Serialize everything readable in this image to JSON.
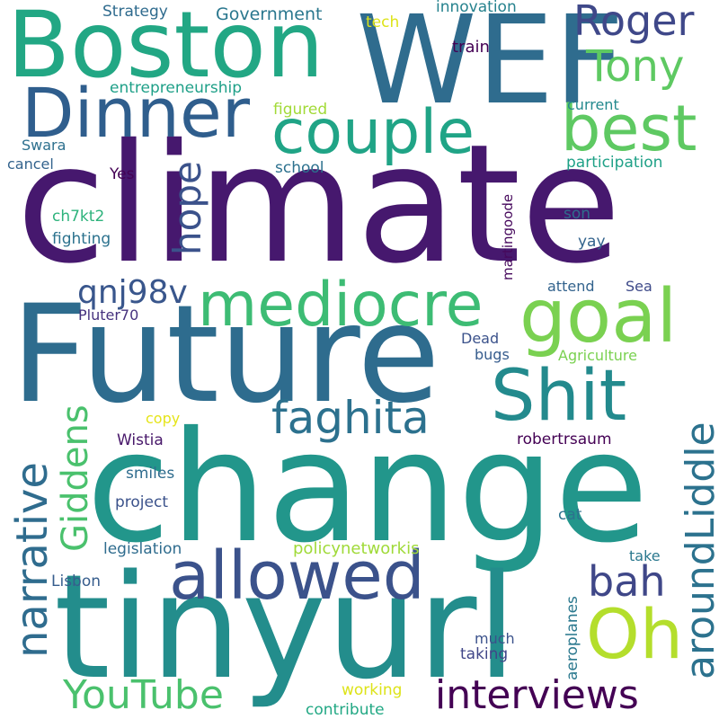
{
  "words": {
    "climate": {
      "text": "climate",
      "color": "#46186e"
    },
    "change": {
      "text": "change",
      "color": "#22968b"
    },
    "tinyurl": {
      "text": "tinyurl",
      "color": "#238d8c"
    },
    "future": {
      "text": "Future",
      "color": "#2e6c8e"
    },
    "wef": {
      "text": "WEF",
      "color": "#2f6c8e"
    },
    "boston": {
      "text": "Boston",
      "color": "#22a784"
    },
    "dinner": {
      "text": "Dinner",
      "color": "#2f5e8d"
    },
    "couple": {
      "text": "couple",
      "color": "#20a486"
    },
    "best": {
      "text": "best",
      "color": "#5ec962"
    },
    "roger": {
      "text": "Roger",
      "color": "#3f4889"
    },
    "tony": {
      "text": "Tony",
      "color": "#5ec962"
    },
    "goal": {
      "text": "goal",
      "color": "#7ad151"
    },
    "mediocre": {
      "text": "mediocre",
      "color": "#3dbc74"
    },
    "allowed": {
      "text": "allowed",
      "color": "#3b528b"
    },
    "shit": {
      "text": "Shit",
      "color": "#238a8d"
    },
    "oh": {
      "text": "Oh",
      "color": "#b4de2c"
    },
    "faghita": {
      "text": "faghita",
      "color": "#2c718e"
    },
    "interviews": {
      "text": "interviews",
      "color": "#440154"
    },
    "youtube": {
      "text": "YouTube",
      "color": "#4ac16d"
    },
    "qnj98v": {
      "text": "qnj98v",
      "color": "#39568c"
    },
    "bah": {
      "text": "bah",
      "color": "#3f4788"
    },
    "hope": {
      "text": "hope",
      "color": "#3b528b"
    },
    "narrative": {
      "text": "narrative",
      "color": "#2f6c8e"
    },
    "giddens": {
      "text": "Giddens",
      "color": "#4ac16d"
    },
    "aroundliddle": {
      "text": "aroundLiddle",
      "color": "#2c728e"
    },
    "strategy": {
      "text": "Strategy",
      "color": "#2f6b8e"
    },
    "government": {
      "text": "Government",
      "color": "#2a778e"
    },
    "tech": {
      "text": "tech",
      "color": "#dde318"
    },
    "innovation": {
      "text": "innovation",
      "color": "#26828e"
    },
    "train": {
      "text": "train",
      "color": "#440154"
    },
    "entrepreneurship": {
      "text": "entrepreneurship",
      "color": "#1fa088"
    },
    "figured": {
      "text": "figured",
      "color": "#a2da37"
    },
    "current": {
      "text": "current",
      "color": "#23898e"
    },
    "swara": {
      "text": "Swara",
      "color": "#2d708e"
    },
    "cancel": {
      "text": "cancel",
      "color": "#33638d"
    },
    "school": {
      "text": "school",
      "color": "#2c718e"
    },
    "participation": {
      "text": "participation",
      "color": "#1fa187"
    },
    "yes": {
      "text": "Yes",
      "color": "#440154"
    },
    "martingoode": {
      "text": "martingoode",
      "color": "#46085c"
    },
    "ch7kt2": {
      "text": "ch7kt2",
      "color": "#2eb37c"
    },
    "son": {
      "text": "son",
      "color": "#2f6c8e"
    },
    "fighting": {
      "text": "fighting",
      "color": "#2c728e"
    },
    "yay": {
      "text": "yay",
      "color": "#33638d"
    },
    "attend": {
      "text": "attend",
      "color": "#33638d"
    },
    "sea": {
      "text": "Sea",
      "color": "#3e4a89"
    },
    "pluter70": {
      "text": "Pluter70",
      "color": "#46327e"
    },
    "dead": {
      "text": "Dead",
      "color": "#3b528b"
    },
    "bugs": {
      "text": "bugs",
      "color": "#365c8d"
    },
    "agriculture": {
      "text": "Agriculture",
      "color": "#7ad151"
    },
    "copy": {
      "text": "copy",
      "color": "#e5e419"
    },
    "wistia": {
      "text": "Wistia",
      "color": "#48186a"
    },
    "robertrsaum": {
      "text": "robertrsaum",
      "color": "#440154"
    },
    "smiles": {
      "text": "smiles",
      "color": "#2f6c8e"
    },
    "project": {
      "text": "project",
      "color": "#3b528b"
    },
    "cat": {
      "text": "cat",
      "color": "#2c728e"
    },
    "legislation": {
      "text": "legislation",
      "color": "#2f6c8e"
    },
    "policynetworkis": {
      "text": "policynetworkis",
      "color": "#a0da39"
    },
    "take": {
      "text": "take",
      "color": "#2a788e"
    },
    "lisbon": {
      "text": "Lisbon",
      "color": "#365d8d"
    },
    "aeroplanes": {
      "text": "aeroplanes",
      "color": "#2a788e"
    },
    "much": {
      "text": "much",
      "color": "#3b528b"
    },
    "taking": {
      "text": "taking",
      "color": "#404688"
    },
    "working": {
      "text": "working",
      "color": "#dde318"
    },
    "contribute": {
      "text": "contribute",
      "color": "#22a884"
    }
  }
}
